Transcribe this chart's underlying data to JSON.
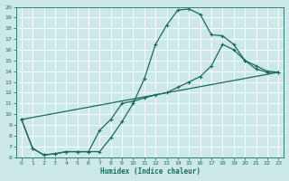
{
  "xlabel": "Humidex (Indice chaleur)",
  "xlim": [
    -0.5,
    23.5
  ],
  "ylim": [
    6,
    20
  ],
  "xticks": [
    0,
    1,
    2,
    3,
    4,
    5,
    6,
    7,
    8,
    9,
    10,
    11,
    12,
    13,
    14,
    15,
    16,
    17,
    18,
    19,
    20,
    21,
    22,
    23
  ],
  "yticks": [
    6,
    7,
    8,
    9,
    10,
    11,
    12,
    13,
    14,
    15,
    16,
    17,
    18,
    19,
    20
  ],
  "background_color": "#cce8e8",
  "grid_color": "#ffffff",
  "line_color": "#1a6b5a",
  "line1_x": [
    0,
    1,
    2,
    3,
    4,
    5,
    6,
    7,
    8,
    9,
    10,
    11,
    12,
    13,
    14,
    15,
    16,
    17,
    18,
    19,
    20,
    21,
    22,
    23
  ],
  "line1_y": [
    9.5,
    6.8,
    6.2,
    6.3,
    6.5,
    6.5,
    6.5,
    6.5,
    7.8,
    9.3,
    11.0,
    13.3,
    16.5,
    18.3,
    19.7,
    19.8,
    19.3,
    17.4,
    17.3,
    16.5,
    15.0,
    14.5,
    14.0,
    13.9
  ],
  "line2_x": [
    0,
    1,
    2,
    3,
    4,
    5,
    6,
    7,
    8,
    9,
    10,
    11,
    12,
    13,
    14,
    15,
    16,
    17,
    18,
    19,
    20,
    21,
    22,
    23
  ],
  "line2_y": [
    9.5,
    6.8,
    6.2,
    6.3,
    6.5,
    6.5,
    6.5,
    8.5,
    9.5,
    11.0,
    11.2,
    11.5,
    11.8,
    12.0,
    12.5,
    13.0,
    13.5,
    14.5,
    16.5,
    16.0,
    15.0,
    14.2,
    13.9,
    13.9
  ],
  "line3_x": [
    0,
    23
  ],
  "line3_y": [
    9.5,
    13.9
  ]
}
